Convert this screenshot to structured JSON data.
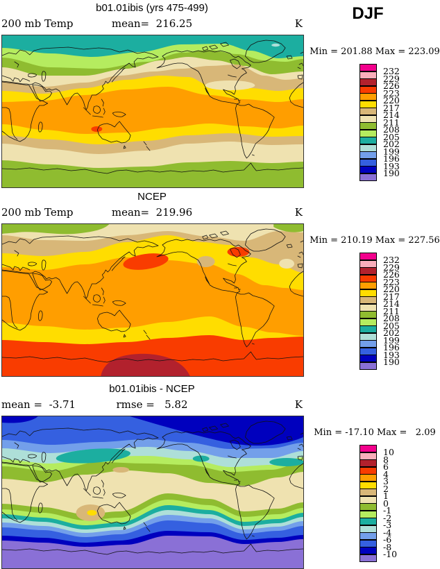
{
  "figure": {
    "season": "DJF"
  },
  "palette": {
    "colors": [
      "#F2008C",
      "#F9AEBB",
      "#B2212D",
      "#F93C00",
      "#FF9E00",
      "#FFDD00",
      "#D8B778",
      "#EFE2B0",
      "#8FBC30",
      "#B5EC5F",
      "#1CAEA0",
      "#AEDFD8",
      "#739FEA",
      "#3560E0",
      "#0000BE",
      "#8A70D6"
    ],
    "temp_labels": [
      "232",
      "229",
      "226",
      "223",
      "220",
      "217",
      "214",
      "211",
      "208",
      "205",
      "202",
      "199",
      "196",
      "193",
      "190"
    ],
    "diff_labels": [
      "10",
      "8",
      "6",
      "4",
      "3",
      "2",
      "1",
      "0",
      "-1",
      "-2",
      "-3",
      "-4",
      "-6",
      "-8",
      "-10"
    ]
  },
  "panels": [
    {
      "title": "b01.01ibis (yrs 475-499)",
      "left_label": "200 mb Temp",
      "center_label": "mean=  216.25",
      "unit": "K",
      "minmax": "Min = 201.88 Max = 223.09",
      "legend_labels": "temp_labels"
    },
    {
      "title": "NCEP",
      "left_label": "200 mb Temp",
      "center_label": "mean=  219.96",
      "unit": "K",
      "minmax": "Min = 210.19 Max = 227.56",
      "legend_labels": "temp_labels"
    },
    {
      "title": "b01.01ibis - NCEP",
      "left_label": "mean =  -3.71",
      "center_label": "rmse =   5.82",
      "unit": "K",
      "minmax": "Min = -17.10 Max =   2.09",
      "legend_labels": "diff_labels"
    }
  ],
  "chart_data": [
    {
      "type": "heatmap",
      "title": "b01.01ibis (yrs 475-499)",
      "variable": "200 mb Temp",
      "season": "DJF",
      "units": "K",
      "mean": 216.25,
      "min": 201.88,
      "max": 223.09,
      "contour_levels": [
        190,
        193,
        196,
        199,
        202,
        205,
        208,
        211,
        214,
        217,
        220,
        223,
        226,
        229,
        232
      ],
      "projection": "global lat-lon, Pacific-centered, filled contours",
      "legend_position": "right"
    },
    {
      "type": "heatmap",
      "title": "NCEP",
      "variable": "200 mb Temp",
      "season": "DJF",
      "units": "K",
      "mean": 219.96,
      "min": 210.19,
      "max": 227.56,
      "contour_levels": [
        190,
        193,
        196,
        199,
        202,
        205,
        208,
        211,
        214,
        217,
        220,
        223,
        226,
        229,
        232
      ],
      "projection": "global lat-lon, Pacific-centered, filled contours",
      "legend_position": "right"
    },
    {
      "type": "heatmap",
      "title": "b01.01ibis - NCEP",
      "variable": "200 mb Temp difference",
      "season": "DJF",
      "units": "K",
      "mean": -3.71,
      "rmse": 5.82,
      "min": -17.1,
      "max": 2.09,
      "contour_levels": [
        -10,
        -8,
        -6,
        -4,
        -3,
        -2,
        -1,
        0,
        1,
        2,
        3,
        4,
        6,
        8,
        10
      ],
      "projection": "global lat-lon, Pacific-centered, filled contours",
      "legend_position": "right"
    }
  ]
}
